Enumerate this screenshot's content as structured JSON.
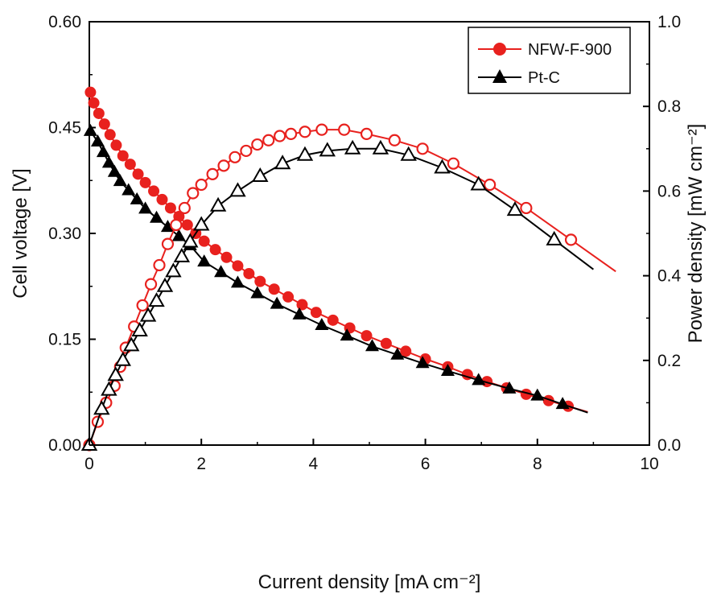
{
  "chart_data": {
    "type": "line",
    "xlabel": "Current density [mA cm⁻²]",
    "ylabel_left": "Cell voltage [V]",
    "ylabel_right": "Power density [mW cm⁻²]",
    "xlim": [
      0,
      10
    ],
    "ylim_left": [
      0,
      0.6
    ],
    "ylim_right": [
      0,
      1.0
    ],
    "xticks": [
      "0",
      "2",
      "4",
      "6",
      "8",
      "10"
    ],
    "yticks_left": [
      "0.00",
      "0.15",
      "0.30",
      "0.45",
      "0.60"
    ],
    "yticks_right": [
      "0.0",
      "0.2",
      "0.4",
      "0.6",
      "0.8",
      "1.0"
    ],
    "legend_position": "top-right",
    "legend": [
      {
        "label": "NFW-F-900",
        "color": "#e8211e",
        "marker": "circle"
      },
      {
        "label": "Pt-C",
        "color": "#000000",
        "marker": "triangle"
      }
    ],
    "series": [
      {
        "name": "NFW-F-900",
        "axis": "left",
        "kind": "voltage",
        "color": "#e8211e",
        "marker": "circle-filled",
        "x": [
          0.02,
          0.08,
          0.17,
          0.27,
          0.37,
          0.48,
          0.6,
          0.73,
          0.87,
          1.0,
          1.15,
          1.3,
          1.45,
          1.6,
          1.75,
          1.9,
          2.05,
          2.25,
          2.45,
          2.65,
          2.85,
          3.05,
          3.3,
          3.55,
          3.8,
          4.05,
          4.35,
          4.65,
          4.95,
          5.3,
          5.65,
          6.0,
          6.4,
          6.75,
          7.1,
          7.45,
          7.8,
          8.2,
          8.55
        ],
        "y": [
          0.5,
          0.485,
          0.47,
          0.455,
          0.44,
          0.425,
          0.41,
          0.398,
          0.384,
          0.372,
          0.36,
          0.348,
          0.336,
          0.324,
          0.312,
          0.3,
          0.289,
          0.277,
          0.266,
          0.254,
          0.243,
          0.232,
          0.221,
          0.21,
          0.199,
          0.188,
          0.177,
          0.166,
          0.155,
          0.144,
          0.133,
          0.122,
          0.111,
          0.1,
          0.09,
          0.081,
          0.072,
          0.063,
          0.055
        ]
      },
      {
        "name": "Pt-C",
        "axis": "left",
        "kind": "voltage",
        "color": "#000000",
        "marker": "triangle-filled",
        "x": [
          0.02,
          0.15,
          0.25,
          0.35,
          0.45,
          0.55,
          0.7,
          0.85,
          1.0,
          1.2,
          1.4,
          1.6,
          1.8,
          2.05,
          2.35,
          2.65,
          3.0,
          3.35,
          3.75,
          4.15,
          4.6,
          5.05,
          5.5,
          5.95,
          6.4,
          6.95,
          7.5,
          8.0,
          8.45
        ],
        "y": [
          0.445,
          0.43,
          0.415,
          0.4,
          0.387,
          0.374,
          0.361,
          0.348,
          0.335,
          0.322,
          0.309,
          0.296,
          0.283,
          0.26,
          0.245,
          0.23,
          0.215,
          0.2,
          0.185,
          0.17,
          0.155,
          0.14,
          0.128,
          0.116,
          0.105,
          0.092,
          0.08,
          0.07,
          0.058
        ]
      },
      {
        "name": "NFW-F-900",
        "axis": "right",
        "kind": "power",
        "color": "#e8211e",
        "marker": "circle-open",
        "x": [
          0.0,
          0.15,
          0.3,
          0.45,
          0.55,
          0.65,
          0.8,
          0.95,
          1.1,
          1.25,
          1.4,
          1.55,
          1.7,
          1.85,
          2.0,
          2.2,
          2.4,
          2.6,
          2.8,
          3.0,
          3.2,
          3.4,
          3.6,
          3.85,
          4.15,
          4.55,
          4.95,
          5.45,
          5.95,
          6.5,
          7.15,
          7.8,
          8.6
        ],
        "y": [
          0.0,
          0.055,
          0.1,
          0.14,
          0.185,
          0.23,
          0.28,
          0.33,
          0.38,
          0.425,
          0.475,
          0.52,
          0.56,
          0.595,
          0.615,
          0.64,
          0.66,
          0.68,
          0.695,
          0.71,
          0.72,
          0.73,
          0.735,
          0.74,
          0.745,
          0.745,
          0.735,
          0.72,
          0.7,
          0.665,
          0.615,
          0.56,
          0.485
        ]
      },
      {
        "name": "Pt-C",
        "axis": "right",
        "kind": "power",
        "color": "#000000",
        "marker": "triangle-open",
        "x": [
          0.0,
          0.22,
          0.35,
          0.47,
          0.6,
          0.75,
          0.9,
          1.05,
          1.2,
          1.35,
          1.5,
          1.65,
          1.8,
          2.0,
          2.3,
          2.65,
          3.05,
          3.45,
          3.85,
          4.25,
          4.7,
          5.2,
          5.7,
          6.3,
          6.95,
          7.6,
          8.3
        ],
        "y": [
          0.0,
          0.085,
          0.13,
          0.165,
          0.2,
          0.235,
          0.27,
          0.305,
          0.34,
          0.375,
          0.41,
          0.445,
          0.48,
          0.52,
          0.565,
          0.6,
          0.635,
          0.665,
          0.685,
          0.695,
          0.7,
          0.7,
          0.685,
          0.655,
          0.615,
          0.555,
          0.485
        ]
      }
    ]
  }
}
